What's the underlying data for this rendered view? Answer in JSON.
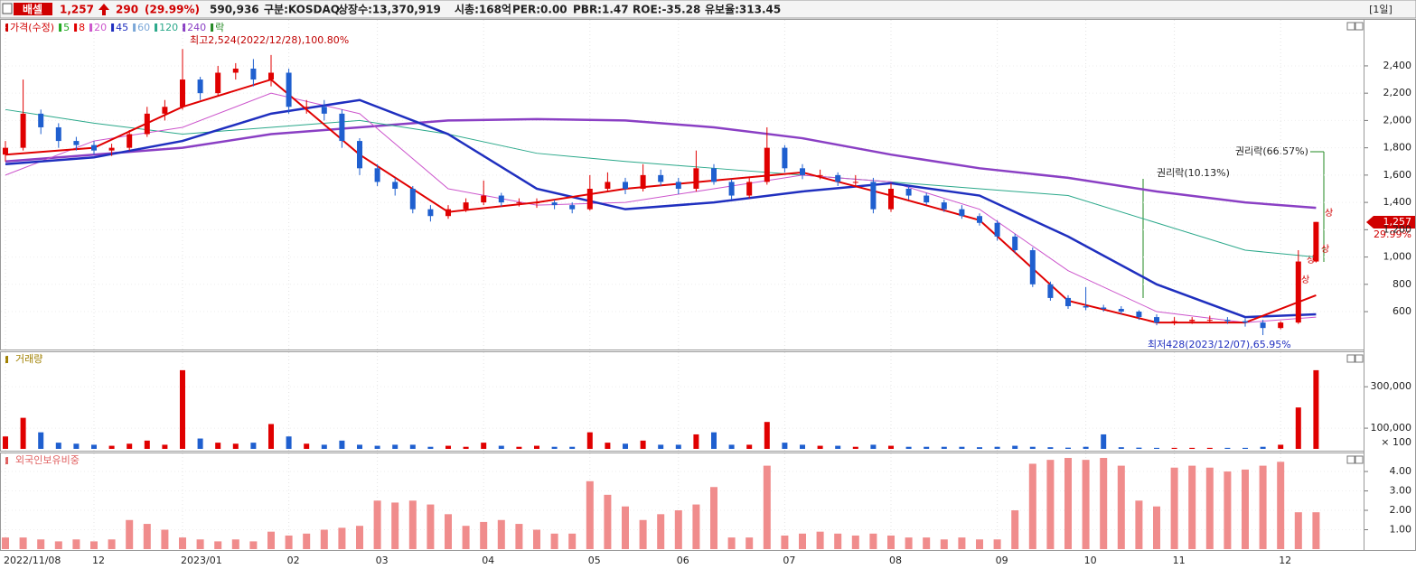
{
  "header": {
    "name": "배셀",
    "price": "1,257",
    "change": "290",
    "change_pct": "(29.99%)",
    "volume": "590,936",
    "market": "구분:KOSDAQ",
    "shares": "상장수:13,370,919",
    "cap": "시총:168억",
    "per": "PER:0.00",
    "pbr": "PBR:1.47",
    "roe": "ROE:-35.28",
    "reserve": "유보율:313.45",
    "period": "[1일]"
  },
  "price_panel": {
    "legend": [
      {
        "label": "가격(수정)",
        "color": "#d00000"
      },
      {
        "label": "5",
        "color": "#22aa22"
      },
      {
        "label": "8",
        "color": "#e00000"
      },
      {
        "label": "20",
        "color": "#cc55cc"
      },
      {
        "label": "45",
        "color": "#1f2fbf"
      },
      {
        "label": "60",
        "color": "#7aa7d8"
      },
      {
        "label": "120",
        "color": "#2aa88a"
      },
      {
        "label": "240",
        "color": "#8a3fc4"
      },
      {
        "label": "락",
        "color": "#228822"
      }
    ],
    "ylim": [
      329,
      2737
    ],
    "yticks": [
      {
        "value": 600,
        "label": "600"
      },
      {
        "value": 800,
        "label": "800"
      },
      {
        "value": 1000,
        "label": "1,000"
      },
      {
        "value": 1200,
        "label": "1,200"
      },
      {
        "value": 1400,
        "label": "1,400"
      },
      {
        "value": 1600,
        "label": "1,600"
      },
      {
        "value": 1800,
        "label": "1,800"
      },
      {
        "value": 2000,
        "label": "2,000"
      },
      {
        "value": 2200,
        "label": "2,200"
      },
      {
        "value": 2400,
        "label": "2,400"
      }
    ],
    "high_note": "최고2,524(2022/12/28),100.80%",
    "low_note": "최저428(2023/12/07),65.95%",
    "ex_rights_1": "권리락(10.13%)",
    "ex_rights_2": "권리락(66.57%)",
    "limit_up_marks": [
      "상",
      "상",
      "상",
      "상"
    ],
    "current_label": "1,257",
    "current_pct": "29.99%",
    "candles": {
      "open": [
        1750,
        1800,
        2050,
        1950,
        1850,
        1820,
        1780,
        1800,
        1900,
        2050,
        2100,
        2300,
        2200,
        2350,
        2380,
        2300,
        2350,
        2100,
        2100,
        2050,
        1850,
        1650,
        1550,
        1500,
        1350,
        1300,
        1350,
        1400,
        1450,
        1400,
        1400,
        1400,
        1380,
        1350,
        1500,
        1550,
        1500,
        1600,
        1550,
        1500,
        1650,
        1550,
        1450,
        1550,
        1800,
        1650,
        1600,
        1600,
        1550,
        1550,
        1350,
        1500,
        1450,
        1400,
        1350,
        1300,
        1250,
        1150,
        1050,
        800,
        700,
        640,
        630,
        620,
        600,
        560,
        520,
        530,
        540,
        540,
        530,
        520,
        480,
        520,
        967
      ],
      "high": [
        1850,
        2300,
        2080,
        1980,
        1880,
        1850,
        1830,
        1930,
        2100,
        2150,
        2524,
        2320,
        2400,
        2420,
        2450,
        2480,
        2380,
        2150,
        2150,
        2080,
        1870,
        1680,
        1580,
        1520,
        1380,
        1380,
        1430,
        1560,
        1470,
        1430,
        1430,
        1420,
        1400,
        1600,
        1620,
        1580,
        1680,
        1640,
        1580,
        1780,
        1680,
        1570,
        1580,
        1950,
        1820,
        1680,
        1640,
        1620,
        1600,
        1580,
        1540,
        1520,
        1470,
        1420,
        1380,
        1320,
        1270,
        1170,
        1070,
        820,
        720,
        780,
        650,
        640,
        610,
        580,
        560,
        560,
        570,
        560,
        550,
        540,
        530,
        1050,
        1257
      ],
      "low": [
        1700,
        1780,
        1900,
        1800,
        1780,
        1750,
        1740,
        1780,
        1880,
        2000,
        2080,
        2150,
        2180,
        2300,
        2250,
        2250,
        2050,
        2050,
        2000,
        1800,
        1600,
        1520,
        1450,
        1320,
        1260,
        1280,
        1330,
        1380,
        1370,
        1370,
        1360,
        1350,
        1320,
        1340,
        1480,
        1460,
        1480,
        1520,
        1460,
        1480,
        1530,
        1420,
        1430,
        1530,
        1620,
        1570,
        1570,
        1520,
        1520,
        1320,
        1330,
        1420,
        1380,
        1330,
        1280,
        1230,
        1120,
        1030,
        780,
        680,
        620,
        610,
        600,
        580,
        540,
        500,
        500,
        510,
        520,
        510,
        490,
        428,
        470,
        510,
        960
      ],
      "close": [
        1800,
        2050,
        1950,
        1850,
        1820,
        1780,
        1800,
        1900,
        2050,
        2100,
        2300,
        2200,
        2350,
        2380,
        2300,
        2350,
        2100,
        2100,
        2050,
        1850,
        1650,
        1550,
        1500,
        1350,
        1300,
        1350,
        1400,
        1450,
        1400,
        1400,
        1400,
        1380,
        1350,
        1500,
        1550,
        1500,
        1600,
        1550,
        1500,
        1650,
        1550,
        1450,
        1550,
        1800,
        1650,
        1600,
        1600,
        1550,
        1550,
        1350,
        1500,
        1450,
        1400,
        1350,
        1300,
        1250,
        1150,
        1050,
        800,
        700,
        640,
        630,
        620,
        600,
        560,
        520,
        530,
        540,
        540,
        530,
        520,
        480,
        520,
        967,
        1257
      ]
    },
    "ma_index": [
      0,
      5,
      10,
      15,
      20,
      25,
      30,
      35,
      40,
      45,
      50,
      55,
      60,
      65,
      70,
      74
    ],
    "moving_averages": [
      {
        "name": "240",
        "color": "#8a3fc4",
        "width": 2.5,
        "values": [
          1700,
          1750,
          1800,
          1900,
          1950,
          2000,
          2010,
          2000,
          1950,
          1870,
          1750,
          1650,
          1580,
          1480,
          1400,
          1360
        ]
      },
      {
        "name": "120",
        "color": "#2aa88a",
        "width": 1,
        "values": [
          2080,
          1980,
          1900,
          1950,
          2000,
          1900,
          1760,
          1700,
          1650,
          1600,
          1550,
          1500,
          1450,
          1250,
          1050,
          1000
        ]
      },
      {
        "name": "20",
        "color": "#cc55cc",
        "width": 1,
        "values": [
          1600,
          1850,
          1950,
          2200,
          2050,
          1500,
          1380,
          1400,
          1500,
          1600,
          1550,
          1350,
          900,
          600,
          520,
          560
        ]
      },
      {
        "name": "45",
        "color": "#1f2fbf",
        "width": 2.5,
        "values": [
          1680,
          1730,
          1850,
          2050,
          2150,
          1900,
          1500,
          1350,
          1400,
          1480,
          1540,
          1450,
          1150,
          800,
          560,
          580
        ]
      },
      {
        "name": "8",
        "color": "#e00000",
        "width": 2,
        "values": [
          1750,
          1800,
          2100,
          2300,
          1750,
          1330,
          1400,
          1500,
          1560,
          1620,
          1450,
          1270,
          680,
          520,
          520,
          720
        ]
      }
    ]
  },
  "volume_panel": {
    "title": "거래량",
    "unit": "× 100",
    "ylim": [
      0,
      458000
    ],
    "yticks": [
      {
        "value": 100000,
        "label": "100,000"
      },
      {
        "value": 300000,
        "label": "300,000"
      }
    ],
    "values": [
      60000,
      150000,
      80000,
      30000,
      25000,
      20000,
      15000,
      25000,
      40000,
      20000,
      380000,
      50000,
      30000,
      25000,
      30000,
      120000,
      60000,
      25000,
      20000,
      40000,
      20000,
      15000,
      20000,
      20000,
      10000,
      15000,
      10000,
      30000,
      15000,
      10000,
      15000,
      10000,
      10000,
      80000,
      30000,
      25000,
      40000,
      20000,
      20000,
      70000,
      80000,
      20000,
      20000,
      130000,
      30000,
      20000,
      15000,
      15000,
      10000,
      20000,
      15000,
      10000,
      10000,
      10000,
      10000,
      8000,
      10000,
      15000,
      10000,
      8000,
      6000,
      10000,
      70000,
      8000,
      6000,
      5000,
      5000,
      5000,
      5000,
      5000,
      5000,
      10000,
      20000,
      200000,
      380000
    ]
  },
  "foreign_panel": {
    "title": "외국인보유비중",
    "ylim": [
      0,
      4.84
    ],
    "yticks": [
      {
        "value": 1,
        "label": "1.00"
      },
      {
        "value": 2,
        "label": "2.00"
      },
      {
        "value": 3,
        "label": "3.00"
      },
      {
        "value": 4,
        "label": "4.00"
      }
    ],
    "values": [
      0.6,
      0.6,
      0.5,
      0.4,
      0.5,
      0.4,
      0.5,
      1.5,
      1.3,
      1.0,
      0.6,
      0.5,
      0.4,
      0.5,
      0.4,
      0.9,
      0.7,
      0.8,
      1.0,
      1.1,
      1.2,
      2.5,
      2.4,
      2.5,
      2.3,
      1.8,
      1.2,
      1.4,
      1.5,
      1.3,
      1.0,
      0.8,
      0.8,
      3.5,
      2.8,
      2.2,
      1.5,
      1.8,
      2.0,
      2.3,
      3.2,
      0.6,
      0.6,
      4.3,
      0.7,
      0.8,
      0.9,
      0.8,
      0.7,
      0.8,
      0.7,
      0.6,
      0.6,
      0.5,
      0.6,
      0.5,
      0.5,
      2.0,
      4.4,
      4.6,
      4.7,
      4.6,
      4.7,
      4.3,
      2.5,
      2.2,
      4.2,
      4.3,
      4.2,
      4.0,
      4.1,
      4.3,
      4.5,
      1.9,
      1.9
    ]
  },
  "dates": [
    "2022/11/08",
    null,
    null,
    null,
    null,
    "12",
    null,
    null,
    null,
    null,
    "2023/01",
    null,
    null,
    null,
    null,
    null,
    "02",
    null,
    null,
    null,
    null,
    "03",
    null,
    null,
    null,
    null,
    null,
    "04",
    null,
    null,
    null,
    null,
    null,
    "05",
    null,
    null,
    null,
    null,
    "06",
    null,
    null,
    null,
    null,
    null,
    "07",
    null,
    null,
    null,
    null,
    null,
    "08",
    null,
    null,
    null,
    null,
    null,
    "09",
    null,
    null,
    null,
    null,
    "10",
    null,
    null,
    null,
    null,
    "11",
    null,
    null,
    null,
    null,
    null,
    "12",
    null,
    null
  ]
}
